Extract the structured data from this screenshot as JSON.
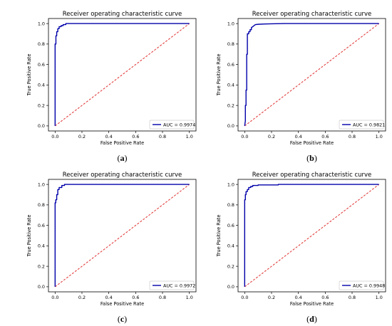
{
  "chart_data": [
    {
      "type": "line",
      "title": "Receiver operating characteristic curve",
      "xlabel": "False Positive Rate",
      "ylabel": "True Positive Rate",
      "xlim": [
        0,
        1
      ],
      "ylim": [
        0,
        1
      ],
      "xticks": [
        "0.0",
        "0.2",
        "0.4",
        "0.6",
        "0.8",
        "1.0"
      ],
      "yticks": [
        "0.0",
        "0.2",
        "0.4",
        "0.6",
        "0.8",
        "1.0"
      ],
      "legend": "AUC = 0.9974",
      "legend_position": "bottom-right",
      "caption_letter": "a",
      "roc_color": "#0000aa",
      "diagonal_color": "#e03030",
      "series": [
        {
          "name": "AUC = 0.9974",
          "x": [
            0,
            0,
            0.006,
            0.006,
            0.012,
            0.012,
            0.02,
            0.02,
            0.03,
            0.03,
            0.045,
            0.045,
            0.06,
            0.06,
            0.08,
            0.08,
            1.0
          ],
          "y": [
            0,
            0.8,
            0.8,
            0.88,
            0.88,
            0.92,
            0.92,
            0.95,
            0.95,
            0.97,
            0.97,
            0.98,
            0.98,
            0.99,
            0.99,
            1.0,
            1.0
          ]
        },
        {
          "name": "",
          "x": [
            0,
            1
          ],
          "y": [
            0,
            1
          ]
        }
      ]
    },
    {
      "type": "line",
      "title": "Receiver operating characteristic curve",
      "xlabel": "False Positive Rate",
      "ylabel": "True Positive Rate",
      "xlim": [
        0,
        1
      ],
      "ylim": [
        0,
        1
      ],
      "xticks": [
        "0.0",
        "0.2",
        "0.4",
        "0.6",
        "0.8",
        "1.0"
      ],
      "yticks": [
        "0.0",
        "0.2",
        "0.4",
        "0.6",
        "0.8",
        "1.0"
      ],
      "legend": "AUC = 0.9821",
      "legend_position": "bottom-right",
      "caption_letter": "b",
      "roc_color": "#0000aa",
      "diagonal_color": "#e03030",
      "series": [
        {
          "name": "AUC = 0.9821",
          "x": [
            0,
            0.005,
            0.005,
            0.01,
            0.01,
            0.015,
            0.015,
            0.02,
            0.02,
            0.03,
            0.03,
            0.04,
            0.04,
            0.05,
            0.05,
            0.06,
            0.07,
            0.08,
            0.1,
            0.15,
            0.2,
            0.3,
            1.0
          ],
          "y": [
            0,
            0.05,
            0.2,
            0.2,
            0.35,
            0.35,
            0.7,
            0.7,
            0.9,
            0.9,
            0.92,
            0.92,
            0.94,
            0.94,
            0.96,
            0.97,
            0.98,
            0.99,
            0.993,
            0.996,
            0.998,
            1.0,
            1.0
          ]
        },
        {
          "name": "",
          "x": [
            0,
            1
          ],
          "y": [
            0,
            1
          ]
        }
      ]
    },
    {
      "type": "line",
      "title": "Receiver operating characteristic curve",
      "xlabel": "False Positive Rate",
      "ylabel": "True Positive Rate",
      "xlim": [
        0,
        1
      ],
      "ylim": [
        0,
        1
      ],
      "xticks": [
        "0.0",
        "0.2",
        "0.4",
        "0.6",
        "0.8",
        "1.0"
      ],
      "yticks": [
        "0.0",
        "0.2",
        "0.4",
        "0.6",
        "0.8",
        "1.0"
      ],
      "legend": "AUC = 0.9972",
      "legend_position": "bottom-right",
      "caption_letter": "c",
      "roc_color": "#0000aa",
      "diagonal_color": "#e03030",
      "series": [
        {
          "name": "AUC = 0.9972",
          "x": [
            0,
            0,
            0.005,
            0.005,
            0.012,
            0.012,
            0.02,
            0.02,
            0.03,
            0.03,
            0.05,
            0.05,
            0.07,
            0.07,
            1.0
          ],
          "y": [
            0,
            0.82,
            0.82,
            0.85,
            0.85,
            0.9,
            0.9,
            0.95,
            0.95,
            0.97,
            0.97,
            0.99,
            0.99,
            1.0,
            1.0
          ]
        },
        {
          "name": "",
          "x": [
            0,
            1
          ],
          "y": [
            0,
            1
          ]
        }
      ]
    },
    {
      "type": "line",
      "title": "Receiver operating characteristic curve",
      "xlabel": "False Positive Rate",
      "ylabel": "True Positive Rate",
      "xlim": [
        0,
        1
      ],
      "ylim": [
        0,
        1
      ],
      "xticks": [
        "0.0",
        "0.2",
        "0.4",
        "0.6",
        "0.8",
        "1.0"
      ],
      "yticks": [
        "0.0",
        "0.2",
        "0.4",
        "0.6",
        "0.8",
        "1.0"
      ],
      "legend": "AUC = 0.9948",
      "legend_position": "bottom-right",
      "caption_letter": "d",
      "roc_color": "#0000aa",
      "diagonal_color": "#e03030",
      "series": [
        {
          "name": "AUC = 0.9948",
          "x": [
            0,
            0,
            0.005,
            0.005,
            0.01,
            0.01,
            0.02,
            0.02,
            0.03,
            0.03,
            0.045,
            0.045,
            0.06,
            0.06,
            0.1,
            0.1,
            0.25,
            0.25,
            1.0
          ],
          "y": [
            0,
            0.85,
            0.85,
            0.9,
            0.9,
            0.93,
            0.93,
            0.95,
            0.95,
            0.97,
            0.97,
            0.98,
            0.98,
            0.99,
            0.99,
            0.995,
            0.995,
            1.0,
            1.0
          ]
        },
        {
          "name": "",
          "x": [
            0,
            1
          ],
          "y": [
            0,
            1
          ]
        }
      ]
    }
  ]
}
